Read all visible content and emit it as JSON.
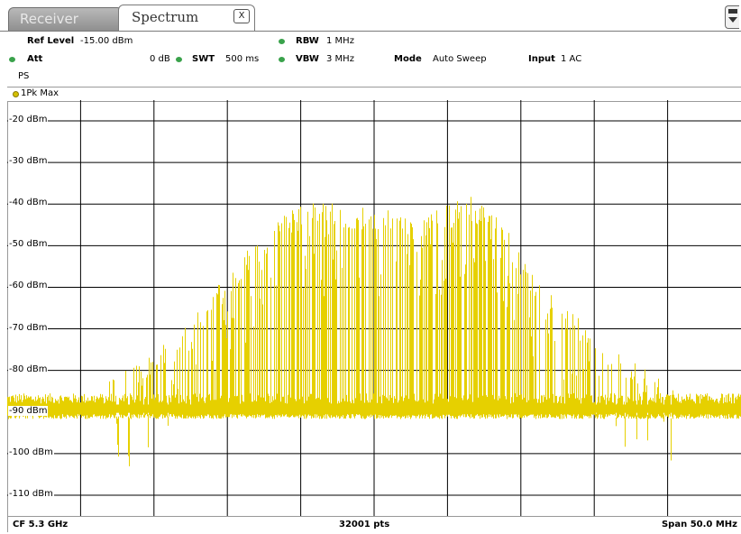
{
  "tabs": {
    "receiver": "Receiver",
    "spectrum": "Spectrum",
    "close": "X"
  },
  "settings": {
    "ref_level_label": "Ref Level",
    "ref_level_value": "-15.00 dBm",
    "att_label": "Att",
    "att_value": "0 dB",
    "swt_label": "SWT",
    "swt_value": "500 ms",
    "rbw_label": "RBW",
    "rbw_value": "1 MHz",
    "vbw_label": "VBW",
    "vbw_value": "3 MHz",
    "mode_label": "Mode",
    "mode_value": "Auto Sweep",
    "input_label": "Input",
    "input_value": "1 AC",
    "ps_label": "PS"
  },
  "trace": {
    "label": "1Pk Max",
    "color": "#e6d000"
  },
  "footer": {
    "cf": "CF 5.3 GHz",
    "pts": "32001 pts",
    "span": "Span 50.0 MHz"
  },
  "colors": {
    "status_dot": "#3aa24b",
    "grid": "#000000",
    "trace": "#e6d000"
  },
  "chart_data": {
    "type": "line",
    "ylim": [
      -115,
      -15
    ],
    "y_ticks": [
      "-20 dBm",
      "-30 dBm",
      "-40 dBm",
      "-50 dBm",
      "-60 dBm",
      "-70 dBm",
      "-80 dBm",
      "-90 dBm",
      "-100 dBm",
      "-110 dBm"
    ],
    "y_tick_values": [
      -20,
      -30,
      -40,
      -50,
      -60,
      -70,
      -80,
      -90,
      -100,
      -110
    ],
    "x_divisions": 10,
    "noise_floor_dbm": -89,
    "envelope": [
      [
        0.0,
        -89
      ],
      [
        0.12,
        -88
      ],
      [
        0.19,
        -81
      ],
      [
        0.25,
        -72
      ],
      [
        0.31,
        -58
      ],
      [
        0.37,
        -47
      ],
      [
        0.41,
        -43
      ],
      [
        0.47,
        -44
      ],
      [
        0.52,
        -45
      ],
      [
        0.56,
        -48
      ],
      [
        0.6,
        -44
      ],
      [
        0.63,
        -42
      ],
      [
        0.67,
        -47
      ],
      [
        0.7,
        -56
      ],
      [
        0.73,
        -64
      ],
      [
        0.78,
        -71
      ],
      [
        0.83,
        -79
      ],
      [
        0.88,
        -85
      ],
      [
        0.92,
        -88
      ],
      [
        1.0,
        -89
      ]
    ]
  }
}
